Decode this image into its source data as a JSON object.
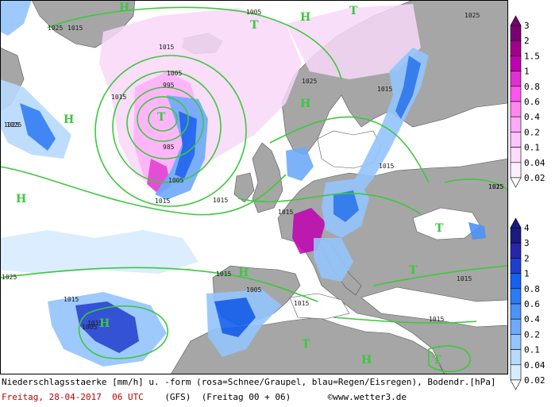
{
  "caption": {
    "line1": "Niederschlagsstaerke [mm/h] u. -form (rosa=Schnee/Graupel, blau=Regen/Eisregen), Bodendr.[hPa]",
    "date": "Freitag, 28-04-2017  06 UTC",
    "model": "(GFS)",
    "run": "(Freitag 00 + 06)",
    "credit": "©www.wetter3.de"
  },
  "legend_snow": {
    "levels": [
      "3",
      "2",
      "1.5",
      "1",
      "0.8",
      "0.6",
      "0.4",
      "0.2",
      "0.1",
      "0.04",
      "0.02"
    ],
    "colors": [
      "#7a0070",
      "#a0008a",
      "#c000b0",
      "#e030d0",
      "#ff55ee",
      "#ff88f0",
      "#ffaaf8",
      "#ffc4fa",
      "#ffdcfc",
      "#ffeefe",
      "#ffffff"
    ]
  },
  "legend_rain": {
    "levels": [
      "4",
      "3",
      "2",
      "1",
      "0.8",
      "0.6",
      "0.4",
      "0.2",
      "0.1",
      "0.04",
      "0.02"
    ],
    "colors": [
      "#1a1a80",
      "#2626a8",
      "#1e40d0",
      "#1460f0",
      "#2c7af5",
      "#4c92f8",
      "#6eaafa",
      "#94c4fc",
      "#b8dafd",
      "#d8ecfe",
      "#ffffff"
    ]
  },
  "pressure_labels": [
    "1025",
    "1015",
    "1005",
    "1015",
    "1005",
    "995",
    "985",
    "1025",
    "1025",
    "1015",
    "1005",
    "1015",
    "1025",
    "1015",
    "1015",
    "1015",
    "1025",
    "1015",
    "1015",
    "1015",
    "1015",
    "1015",
    "1005",
    "1015",
    "1015",
    "1025",
    "1005",
    "1015",
    "1025"
  ],
  "highs": [
    "H",
    "H",
    "H",
    "H",
    "H",
    "H",
    "H",
    "H"
  ],
  "lows": [
    "T",
    "T",
    "T",
    "T",
    "T",
    "T",
    "T"
  ],
  "colors": {
    "ocean": "#ffffff",
    "land": "#a6a6a6",
    "isobar": "#3cc83c",
    "coast": "#444444",
    "rain_light": "#c8e6ff",
    "snow_light": "#f8d8f8"
  }
}
